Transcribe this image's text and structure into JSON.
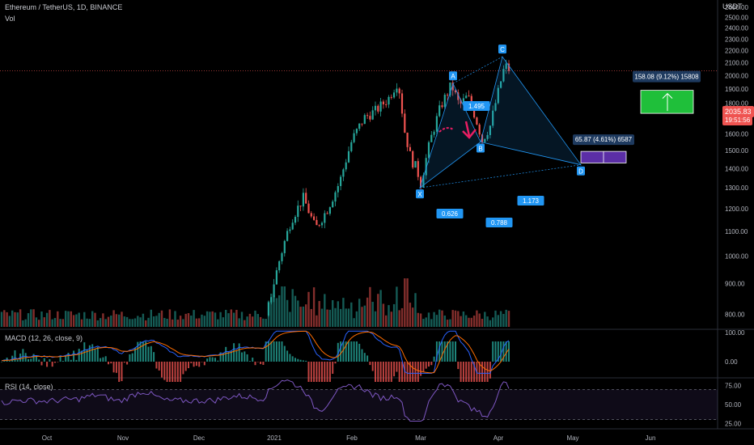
{
  "header": {
    "symbol": "Ethereum / TetherUS, 1D, BINANCE",
    "vol_label": "Vol",
    "currency": "USDT",
    "macd_label": "MACD (12, 26, close, 9)",
    "rsi_label": "RSI (14, close)"
  },
  "price": {
    "current": "2035.83",
    "countdown": "19:51:56"
  },
  "colors": {
    "up": "#26a69a",
    "down": "#ef5350",
    "pattern": "#2196f3",
    "target_box": "#1fbf3a",
    "second_box": "#5b2ea6",
    "macd": "#2962ff",
    "signal": "#ff6d00",
    "rsi": "#7e57c2",
    "marker": "#e91e63"
  },
  "chart_data": [
    {
      "type": "candlestick",
      "title": "Ethereum / TetherUS, 1D, BINANCE",
      "x_ticks": [
        "Oct",
        "Nov",
        "Dec",
        "2021",
        "Feb",
        "Mar",
        "Apr",
        "May",
        "Jun"
      ],
      "y_ticks": [
        800,
        900,
        1000,
        1100,
        1200,
        1300,
        1400,
        1500,
        1600,
        1700,
        1800,
        1900,
        2000,
        2100,
        2200,
        2300,
        2400,
        2500,
        2600
      ],
      "ylim": [
        760,
        2640
      ],
      "scale": "log",
      "last_price": 2035.83,
      "harmonic_points": [
        {
          "label": "X",
          "value": 1300
        },
        {
          "label": "A",
          "value": 1940
        },
        {
          "label": "B",
          "value": 1550
        },
        {
          "label": "C",
          "value": 2150
        },
        {
          "label": "D",
          "value": 1420
        }
      ],
      "ratios": [
        "0.626",
        "1.495",
        "1.173",
        "0.788"
      ],
      "measure_boxes": [
        {
          "label": "158.08 (9.12%) 15808",
          "from": 1730,
          "to": 1890
        },
        {
          "label": "65.87 (4.61%) 6587",
          "from": 1430,
          "to": 1495
        }
      ]
    },
    {
      "type": "line",
      "title": "MACD (12, 26, close, 9)",
      "y_ticks": [
        "100.00",
        "0.00"
      ],
      "series": [
        {
          "name": "MACD"
        },
        {
          "name": "Signal"
        }
      ]
    },
    {
      "type": "line",
      "title": "RSI (14, close)",
      "y_ticks": [
        "75.00",
        "50.00",
        "25.00"
      ],
      "levels": [
        70,
        30
      ]
    }
  ]
}
